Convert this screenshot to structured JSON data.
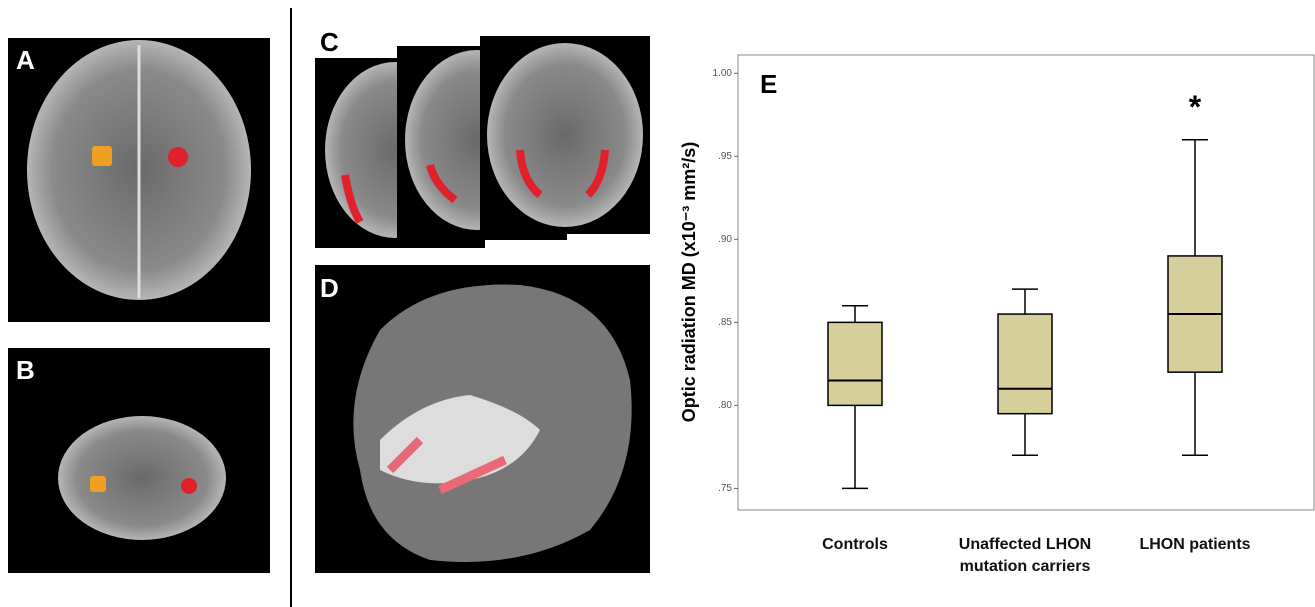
{
  "panels": [
    "A",
    "B",
    "C",
    "D"
  ],
  "chart_data": {
    "type": "box",
    "label": "E",
    "ylabel": "Optic radiation MD (x10⁻³ mm²/s)",
    "categories": [
      "Controls",
      "Unaffected LHON\nmutation carriers",
      "LHON patients"
    ],
    "boxes": [
      {
        "min": 0.75,
        "q1": 0.8,
        "median": 0.815,
        "q3": 0.85,
        "max": 0.86
      },
      {
        "min": 0.77,
        "q1": 0.795,
        "median": 0.81,
        "q3": 0.855,
        "max": 0.87
      },
      {
        "min": 0.77,
        "q1": 0.82,
        "median": 0.855,
        "q3": 0.89,
        "max": 0.96
      }
    ],
    "annotations": [
      {
        "category": 2,
        "text": "*"
      }
    ],
    "color": "#d6cf9b",
    "ylim": [
      0.737,
      1.011
    ],
    "yticks": [
      {
        "value": 0.75,
        "label": ".75"
      },
      {
        "value": 0.8,
        "label": ".80"
      },
      {
        "value": 0.85,
        "label": ".85"
      },
      {
        "value": 0.9,
        "label": ".90"
      },
      {
        "value": 0.95,
        "label": ".95"
      },
      {
        "value": 1.0,
        "label": "1.00"
      }
    ]
  }
}
